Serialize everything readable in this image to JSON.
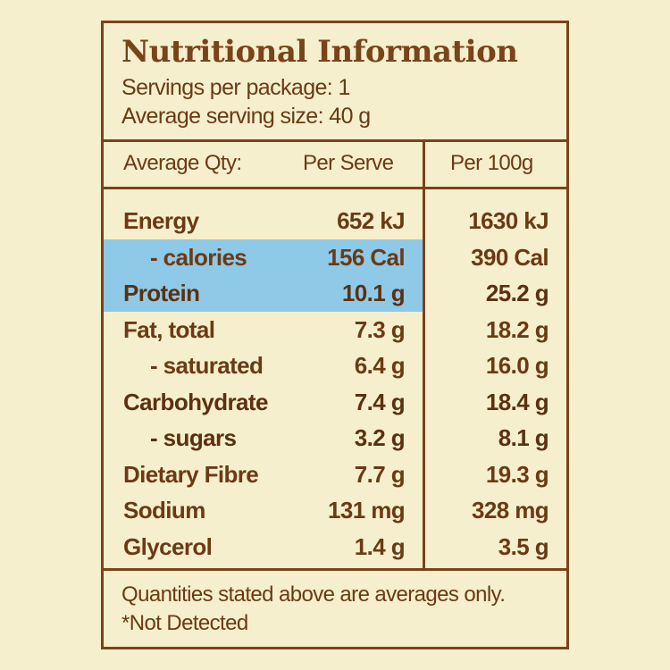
{
  "title": "Nutritional Information",
  "servings_per_package": "Servings per package: 1",
  "average_serving_size": "Average serving size: 40 g",
  "columns": {
    "qty": "Average Qty:",
    "per_serve": "Per Serve",
    "per_100g": "Per 100g"
  },
  "rows": [
    {
      "name": "Energy",
      "per_serve": "652 kJ",
      "per_100g": "1630 kJ"
    },
    {
      "name": "- calories",
      "per_serve": "156 Cal",
      "per_100g": "390 Cal"
    },
    {
      "name": "Protein",
      "per_serve": "10.1 g",
      "per_100g": "25.2 g"
    },
    {
      "name": "Fat, total",
      "per_serve": "7.3 g",
      "per_100g": "18.2 g"
    },
    {
      "name": "- saturated",
      "per_serve": "6.4 g",
      "per_100g": "16.0 g"
    },
    {
      "name": "Carbohydrate",
      "per_serve": "7.4 g",
      "per_100g": "18.4 g"
    },
    {
      "name": "- sugars",
      "per_serve": "3.2 g",
      "per_100g": "8.1 g"
    },
    {
      "name": "Dietary Fibre",
      "per_serve": "7.7 g",
      "per_100g": "19.3 g"
    },
    {
      "name": "Sodium",
      "per_serve": "131 mg",
      "per_100g": "328 mg"
    },
    {
      "name": "Glycerol",
      "per_serve": "1.4 g",
      "per_100g": "3.5 g"
    }
  ],
  "footer": {
    "note": "Quantities stated above are averages only.",
    "not_detected": "*Not Detected"
  },
  "colors": {
    "background": "#f6efcd",
    "border": "#7a4319",
    "text": "#6b3a14",
    "highlight": "#8ec9e8"
  }
}
